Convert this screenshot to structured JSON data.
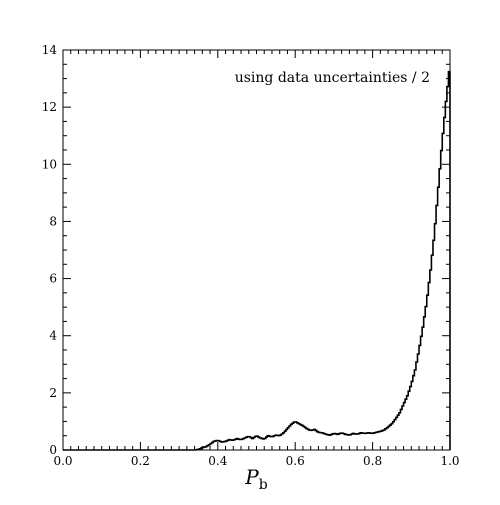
{
  "chart_data": {
    "type": "histogram",
    "title": "",
    "xlabel": "P",
    "xlabel_subscript": "b",
    "ylabel": "",
    "annotation": "using data uncertainties / 2",
    "annotation_position": "top-right",
    "xlim": [
      0.0,
      1.0
    ],
    "ylim": [
      0,
      14
    ],
    "x_ticks": [
      0.0,
      0.2,
      0.4,
      0.6,
      0.8,
      1.0
    ],
    "x_tick_labels": [
      "0.0",
      "0.2",
      "0.4",
      "0.6",
      "0.8",
      "1.0"
    ],
    "y_ticks": [
      0,
      2,
      4,
      6,
      8,
      10,
      12,
      14
    ],
    "y_tick_labels": [
      "0",
      "2",
      "4",
      "6",
      "8",
      "10",
      "12",
      "14"
    ],
    "grid": false,
    "line_color": "#000000",
    "series": [
      {
        "points": [
          [
            0.34,
            0.0
          ],
          [
            0.35,
            0.02
          ],
          [
            0.36,
            0.08
          ],
          [
            0.37,
            0.12
          ],
          [
            0.38,
            0.2
          ],
          [
            0.39,
            0.3
          ],
          [
            0.4,
            0.34
          ],
          [
            0.41,
            0.28
          ],
          [
            0.42,
            0.3
          ],
          [
            0.43,
            0.36
          ],
          [
            0.44,
            0.34
          ],
          [
            0.45,
            0.4
          ],
          [
            0.46,
            0.36
          ],
          [
            0.47,
            0.42
          ],
          [
            0.48,
            0.48
          ],
          [
            0.49,
            0.4
          ],
          [
            0.5,
            0.5
          ],
          [
            0.51,
            0.42
          ],
          [
            0.52,
            0.38
          ],
          [
            0.53,
            0.5
          ],
          [
            0.54,
            0.46
          ],
          [
            0.55,
            0.52
          ],
          [
            0.56,
            0.5
          ],
          [
            0.57,
            0.6
          ],
          [
            0.58,
            0.75
          ],
          [
            0.59,
            0.9
          ],
          [
            0.6,
            1.0
          ],
          [
            0.61,
            0.92
          ],
          [
            0.62,
            0.85
          ],
          [
            0.63,
            0.75
          ],
          [
            0.64,
            0.68
          ],
          [
            0.65,
            0.72
          ],
          [
            0.66,
            0.62
          ],
          [
            0.67,
            0.6
          ],
          [
            0.68,
            0.55
          ],
          [
            0.69,
            0.52
          ],
          [
            0.7,
            0.58
          ],
          [
            0.71,
            0.55
          ],
          [
            0.72,
            0.6
          ],
          [
            0.73,
            0.55
          ],
          [
            0.74,
            0.52
          ],
          [
            0.75,
            0.58
          ],
          [
            0.76,
            0.55
          ],
          [
            0.77,
            0.6
          ],
          [
            0.78,
            0.58
          ],
          [
            0.79,
            0.6
          ],
          [
            0.8,
            0.58
          ],
          [
            0.81,
            0.62
          ],
          [
            0.82,
            0.65
          ],
          [
            0.83,
            0.7
          ],
          [
            0.84,
            0.8
          ],
          [
            0.85,
            0.92
          ],
          [
            0.86,
            1.1
          ],
          [
            0.87,
            1.3
          ],
          [
            0.88,
            1.6
          ],
          [
            0.89,
            1.9
          ],
          [
            0.9,
            2.3
          ],
          [
            0.91,
            2.8
          ],
          [
            0.92,
            3.5
          ],
          [
            0.93,
            4.3
          ],
          [
            0.94,
            5.2
          ],
          [
            0.95,
            6.3
          ],
          [
            0.96,
            7.6
          ],
          [
            0.97,
            9.2
          ],
          [
            0.98,
            10.8
          ],
          [
            0.99,
            12.2
          ],
          [
            1.0,
            13.5
          ]
        ]
      }
    ]
  }
}
